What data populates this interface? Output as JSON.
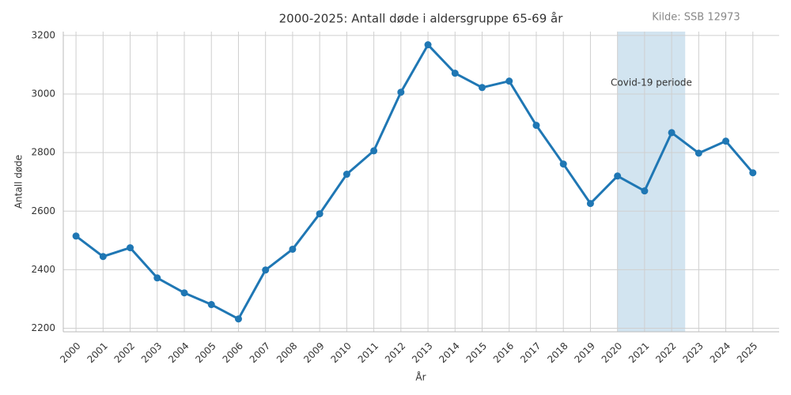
{
  "chart_data": {
    "type": "line",
    "title": "2000-2025: Antall døde i aldersgruppe 65-69 år",
    "source": "Kilde: SSB 12973",
    "x_label": "År",
    "y_label": "Antall døde",
    "annotation": "Covid-19 periode",
    "shade": [
      2020,
      2022.5
    ],
    "x": [
      2000,
      2001,
      2002,
      2003,
      2004,
      2005,
      2006,
      2007,
      2008,
      2009,
      2010,
      2011,
      2012,
      2013,
      2014,
      2015,
      2016,
      2017,
      2018,
      2019,
      2020,
      2021,
      2022,
      2023,
      2024,
      2025
    ],
    "series": [
      {
        "name": "Antall døde",
        "color": "#1f77b4",
        "values": [
          2515,
          2445,
          2475,
          2372,
          2321,
          2281,
          2232,
          2399,
          2470,
          2591,
          2726,
          2806,
          3006,
          3168,
          3071,
          3022,
          3044,
          2893,
          2761,
          2626,
          2720,
          2669,
          2868,
          2798,
          2839,
          2731
        ]
      }
    ],
    "xlim": [
      1999.53,
      2025.97
    ],
    "xticks": [
      2000,
      2001,
      2002,
      2003,
      2004,
      2005,
      2006,
      2007,
      2008,
      2009,
      2010,
      2011,
      2012,
      2013,
      2014,
      2015,
      2016,
      2017,
      2018,
      2019,
      2020,
      2021,
      2022,
      2023,
      2024,
      2025
    ],
    "ylim": [
      2188,
      3213
    ],
    "yticks": [
      2200,
      2400,
      2600,
      2800,
      3000,
      3200
    ],
    "grid": true
  }
}
